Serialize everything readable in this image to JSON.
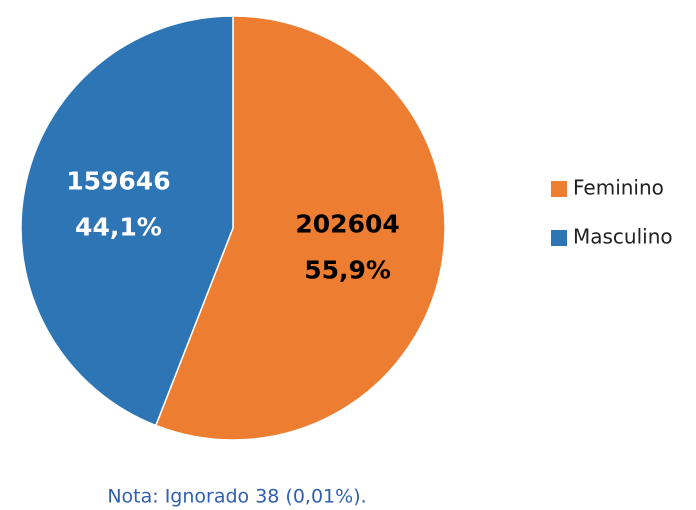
{
  "chart_data": {
    "type": "pie",
    "categories": [
      "Feminino",
      "Masculino"
    ],
    "values": [
      202604,
      159646
    ],
    "percents": [
      55.9,
      44.1
    ],
    "percent_labels": [
      "55,9%",
      "44,1%"
    ],
    "colors": [
      "#ed7d31",
      "#2e75b6"
    ],
    "label_colors": [
      "#000000",
      "#ffffff"
    ],
    "legend": "right",
    "note": "Nota: Ignorado 38 (0,01%)."
  }
}
